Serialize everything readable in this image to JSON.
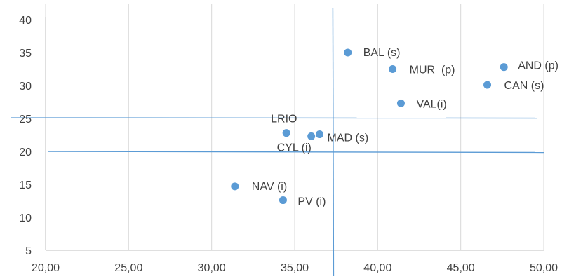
{
  "chart_data": {
    "type": "scatter",
    "title": "",
    "xlabel": "",
    "ylabel": "",
    "xlim": [
      20,
      50
    ],
    "ylim": [
      5,
      40
    ],
    "x_ticks": [
      "20,00",
      "25,00",
      "30,00",
      "35,00",
      "40,00",
      "45,00",
      "50,00"
    ],
    "y_ticks": [
      "5",
      "10",
      "15",
      "20",
      "25",
      "30",
      "35",
      "40"
    ],
    "grid": "vertical",
    "reference_lines": {
      "vertical_x": 37.3,
      "horizontal_y": [
        25.1,
        20.0
      ]
    },
    "colors": {
      "point": "#5b9bd5",
      "reference_line": "#5b9bd5",
      "grid": "#d9d9d9",
      "text": "#404040"
    },
    "points": [
      {
        "label": "BAL (s)",
        "x": 38.2,
        "y": 35.0
      },
      {
        "label": "MUR  (p)",
        "x": 40.9,
        "y": 32.5
      },
      {
        "label": "AND (p)",
        "x": 47.6,
        "y": 32.8
      },
      {
        "label": "CAN (s)",
        "x": 46.6,
        "y": 30.1
      },
      {
        "label": "VAL(i)",
        "x": 41.4,
        "y": 27.3
      },
      {
        "label": "LRIO",
        "x": 34.5,
        "y": 22.8
      },
      {
        "label": "CYL (i)",
        "x": 36.0,
        "y": 22.3
      },
      {
        "label": "MAD (s)",
        "x": 36.5,
        "y": 22.6
      },
      {
        "label": "NAV (i)",
        "x": 31.4,
        "y": 14.7
      },
      {
        "label": "PV (i)",
        "x": 34.3,
        "y": 12.6
      }
    ]
  }
}
